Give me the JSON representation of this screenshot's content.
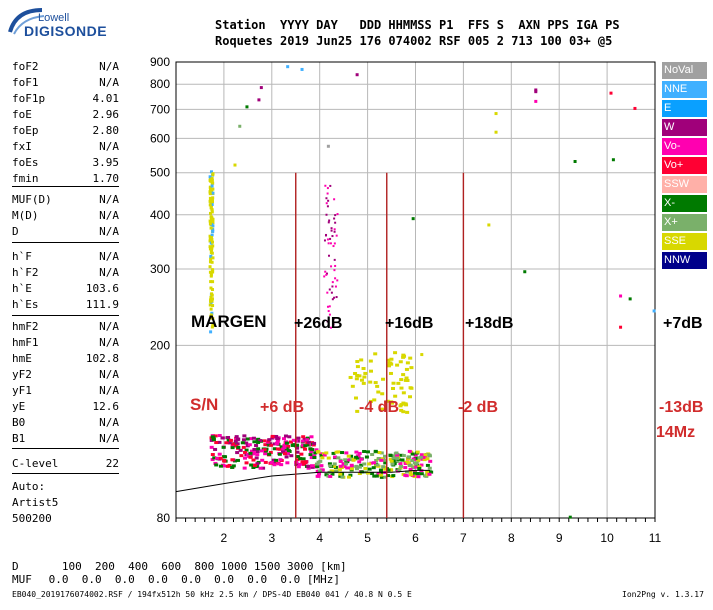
{
  "logo": {
    "top": "Lowell",
    "main": "DIGISONDE"
  },
  "header": {
    "line1": "Station  YYYY DAY   DDD HHMMSS P1  FFS S  AXN PPS IGA PS",
    "line2": "Roquetes 2019 Jun25 176 074002 RSF 005 2 713 100 03+ @5"
  },
  "params": {
    "group1": [
      {
        "name": "foF2",
        "value": "N/A"
      },
      {
        "name": "foF1",
        "value": "N/A"
      },
      {
        "name": "foF1p",
        "value": "4.01"
      },
      {
        "name": "foE",
        "value": "2.96"
      },
      {
        "name": "foEp",
        "value": "2.80"
      },
      {
        "name": "fxI",
        "value": "N/A"
      },
      {
        "name": "foEs",
        "value": "3.95"
      },
      {
        "name": "fmin",
        "value": "1.70"
      }
    ],
    "group2": [
      {
        "name": "MUF(D)",
        "value": "N/A"
      },
      {
        "name": "M(D)",
        "value": "N/A"
      },
      {
        "name": "D",
        "value": "N/A"
      }
    ],
    "group3": [
      {
        "name": "h`F",
        "value": "N/A"
      },
      {
        "name": "h`F2",
        "value": "N/A"
      },
      {
        "name": "h`E",
        "value": "103.6"
      },
      {
        "name": "h`Es",
        "value": "111.9"
      }
    ],
    "group4": [
      {
        "name": "hmF2",
        "value": "N/A"
      },
      {
        "name": "hmF1",
        "value": "N/A"
      },
      {
        "name": "hmE",
        "value": "102.8"
      },
      {
        "name": "yF2",
        "value": "N/A"
      },
      {
        "name": "yF1",
        "value": "N/A"
      },
      {
        "name": "yE",
        "value": "12.6"
      },
      {
        "name": "B0",
        "value": "N/A"
      },
      {
        "name": "B1",
        "value": "N/A"
      }
    ],
    "clevel": {
      "name": "C-level",
      "value": "22"
    },
    "auto_label": "Auto:",
    "artist": "Artist5",
    "artist_code": "500200"
  },
  "legend": [
    {
      "label": "NoVal",
      "color": "#a0a0a0"
    },
    {
      "label": "NNE",
      "color": "#40b0ff"
    },
    {
      "label": "E",
      "color": "#0aa0ff"
    },
    {
      "label": "W",
      "color": "#a0007a"
    },
    {
      "label": "Vo-",
      "color": "#ff00b0"
    },
    {
      "label": "Vo+",
      "color": "#ff0033"
    },
    {
      "label": "SSW",
      "color": "#ffb0a8"
    },
    {
      "label": "X-",
      "color": "#007a00"
    },
    {
      "label": "X+",
      "color": "#7ab06a"
    },
    {
      "label": "SSE",
      "color": "#d8d800"
    },
    {
      "label": "NNW",
      "color": "#00008a"
    }
  ],
  "annotations": {
    "margen": "MARGEN",
    "sn": "S/N",
    "gains": [
      "+26dB",
      "+16dB",
      "+18dB",
      "+7dB"
    ],
    "sn_values": [
      "+6 dB",
      "-4 dB",
      "-2 dB",
      "-13dB"
    ],
    "freq_note": "14Mz"
  },
  "footer": {
    "row1_label": "D",
    "row1_values": "   100  200  400  600  800 1000 1500 3000 [km]",
    "row2_label": "MUF",
    "row2_values": " 0.0  0.0  0.0  0.0  0.0  0.0  0.0  0.0 [MHz]",
    "fileinfo": "EB040_2019176074002.RSF / 194fx512h 50 kHz 2.5 km / DPS-4D EB040 041 / 40.8 N 0.5 E",
    "version": "Ion2Png v. 1.3.17"
  },
  "chart_data": {
    "type": "scatter",
    "title": "",
    "xlabel": "",
    "ylabel": "",
    "xlim": [
      1.0,
      11.0
    ],
    "ylim": [
      80,
      900
    ],
    "x_ticks": [
      2,
      3,
      4,
      5,
      6,
      7,
      8,
      9,
      10,
      11
    ],
    "y_ticks": [
      80,
      200,
      300,
      400,
      500,
      600,
      700,
      800,
      900
    ],
    "y_scale": "log",
    "grid": true,
    "trace_E": {
      "x": [
        1.0,
        1.5,
        2.0,
        2.5,
        3.0,
        3.5,
        4.0,
        4.5,
        5.0,
        5.5,
        6.0,
        6.3
      ],
      "y": [
        92,
        94,
        96,
        98,
        100,
        101,
        102,
        102,
        102,
        102,
        103,
        103
      ]
    },
    "es_clouds": [
      {
        "name": "foEs",
        "x_range": [
          1.7,
          3.9
        ],
        "y_range": [
          105,
          125
        ],
        "colors": [
          "Vo-",
          "Vo+",
          "X-",
          "W"
        ]
      },
      {
        "name": "Es-2",
        "x_range": [
          3.9,
          6.3
        ],
        "y_range": [
          100,
          115
        ],
        "colors": [
          "X+",
          "X-",
          "Vo-",
          "SSE"
        ]
      },
      {
        "name": "Es-upper",
        "x_range": [
          4.6,
          5.9
        ],
        "y_range": [
          140,
          195
        ],
        "colors": [
          "SSE"
        ]
      }
    ],
    "fmin_column": {
      "x": 1.7,
      "y_range": [
        210,
        510
      ],
      "colors": [
        "SSE",
        "NNE"
      ]
    },
    "spread_column": {
      "x": 4.15,
      "y_range": [
        220,
        470
      ],
      "colors": [
        "Vo-",
        "W"
      ]
    },
    "scattered_points": [
      {
        "x": 3.3,
        "y": 885,
        "color": "NNE"
      },
      {
        "x": 3.6,
        "y": 872,
        "color": "NNE"
      },
      {
        "x": 4.75,
        "y": 848,
        "color": "W"
      },
      {
        "x": 2.75,
        "y": 792,
        "color": "W"
      },
      {
        "x": 2.7,
        "y": 742,
        "color": "W"
      },
      {
        "x": 2.45,
        "y": 715,
        "color": "X-"
      },
      {
        "x": 2.3,
        "y": 645,
        "color": "X+"
      },
      {
        "x": 4.15,
        "y": 580,
        "color": "NoVal"
      },
      {
        "x": 2.2,
        "y": 525,
        "color": "SSE"
      },
      {
        "x": 7.65,
        "y": 690,
        "color": "SSE"
      },
      {
        "x": 7.65,
        "y": 625,
        "color": "SSE"
      },
      {
        "x": 8.48,
        "y": 782,
        "color": "W"
      },
      {
        "x": 8.48,
        "y": 775,
        "color": "W"
      },
      {
        "x": 8.48,
        "y": 736,
        "color": "Vo-"
      },
      {
        "x": 10.05,
        "y": 769,
        "color": "Vo+"
      },
      {
        "x": 10.55,
        "y": 709,
        "color": "Vo+"
      },
      {
        "x": 9.3,
        "y": 535,
        "color": "X-"
      },
      {
        "x": 10.1,
        "y": 540,
        "color": "X-"
      },
      {
        "x": 5.92,
        "y": 395,
        "color": "X-"
      },
      {
        "x": 8.25,
        "y": 298,
        "color": "X-"
      },
      {
        "x": 7.5,
        "y": 382,
        "color": "SSE"
      },
      {
        "x": 10.25,
        "y": 262,
        "color": "Vo-"
      },
      {
        "x": 10.45,
        "y": 258,
        "color": "X-"
      },
      {
        "x": 10.25,
        "y": 222,
        "color": "Vo+"
      },
      {
        "x": 10.95,
        "y": 242,
        "color": "NNE"
      },
      {
        "x": 6.1,
        "y": 192,
        "color": "SSE"
      },
      {
        "x": 9.2,
        "y": 81,
        "color": "X-"
      }
    ],
    "markers_x": [
      3.5,
      5.4,
      7.0
    ]
  }
}
